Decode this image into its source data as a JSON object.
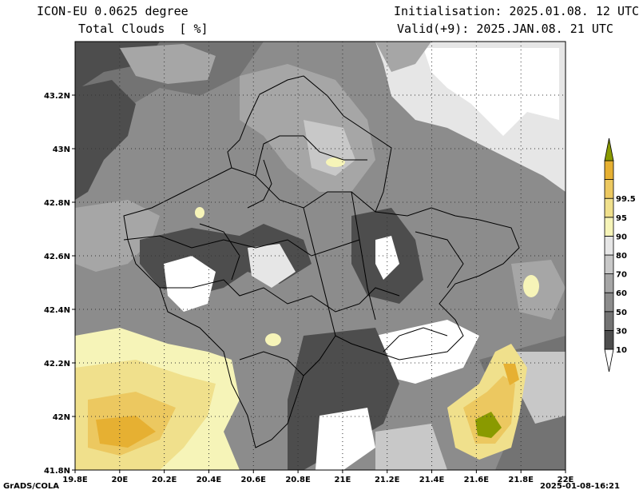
{
  "header": {
    "model": "ICON-EU 0.0625 degree",
    "variable": "Total Clouds  [ %]",
    "init": "Initialisation: 2025.01.08. 12 UTC",
    "valid": "Valid(+9): 2025.JAN.08. 21 UTC"
  },
  "axes": {
    "x_ticks": [
      "19.8E",
      "20E",
      "20.2E",
      "20.4E",
      "20.6E",
      "20.8E",
      "21E",
      "21.2E",
      "21.4E",
      "21.6E",
      "21.8E",
      "22E"
    ],
    "y_ticks": [
      "41.8N",
      "42N",
      "42.2N",
      "42.4N",
      "42.6N",
      "42.8N",
      "43N",
      "43.2N"
    ]
  },
  "colorbar": {
    "levels": [
      "10",
      "30",
      "50",
      "60",
      "70",
      "80",
      "90",
      "95",
      "99.5"
    ],
    "colors": [
      "#ffffff",
      "#4d4d4d",
      "#737373",
      "#8c8c8c",
      "#a6a6a6",
      "#c8c8c8",
      "#e6e6e6",
      "#f6f4b8",
      "#f0e08c",
      "#ecc860",
      "#e6b032",
      "#8a9a00"
    ]
  },
  "footer": {
    "left": "GrADS/COLA",
    "right": "2025-01-08-16:21"
  }
}
